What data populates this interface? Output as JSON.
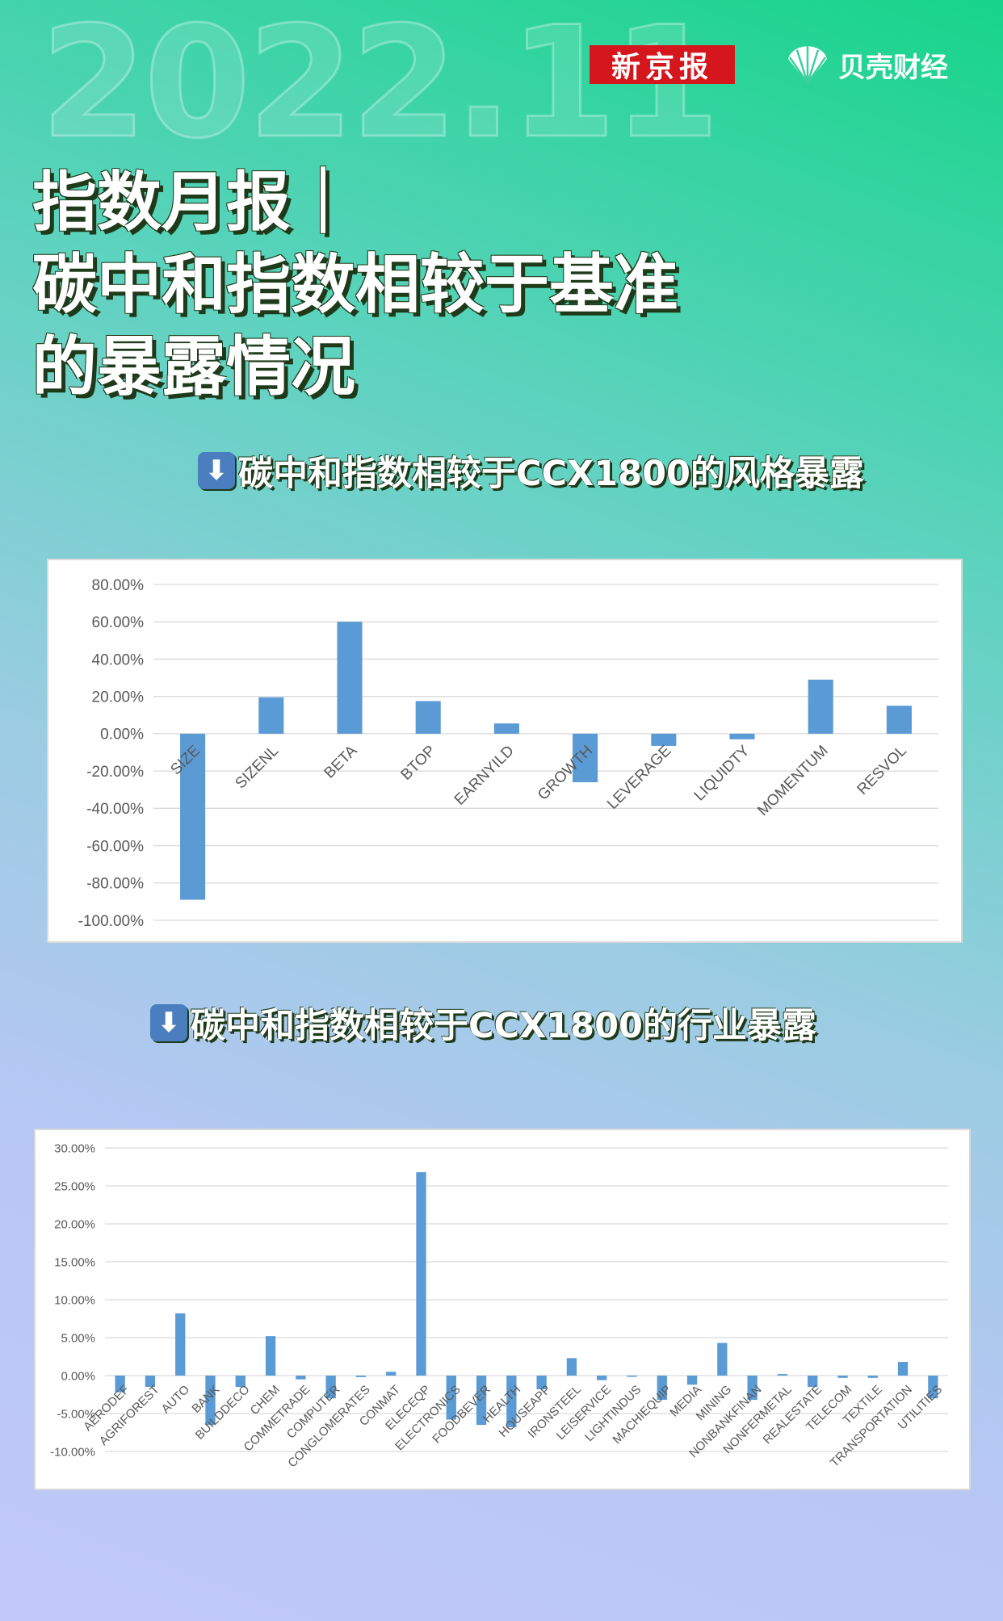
{
  "header": {
    "year_text": "2022.11",
    "logo_xjb": "新京报",
    "logo_bk": "贝壳财经",
    "logo_bk_icon": "shell-icon",
    "title_lines": [
      "指数月报｜",
      "碳中和指数相较于基准",
      "的暴露情况"
    ]
  },
  "sections": [
    {
      "icon": "arrow-down-icon",
      "title": "碳中和指数相较于CCX1800的风格暴露"
    },
    {
      "icon": "arrow-down-icon",
      "title": "碳中和指数相较于CCX1800的行业暴露"
    }
  ],
  "colors": {
    "bar": "#5b9bd5",
    "grid": "#d9d9d9",
    "axis_text": "#595959",
    "brand_red": "#d6161d"
  },
  "chart_data": [
    {
      "type": "bar",
      "categories": [
        "SIZE",
        "SIZENL",
        "BETA",
        "BTOP",
        "EARNYILD",
        "GROWTH",
        "LEVERAGE",
        "LIQUIDTY",
        "MOMENTUM",
        "RESVOL"
      ],
      "values": [
        -89,
        19.5,
        60,
        17.5,
        5.5,
        -26,
        -6.5,
        -3,
        29,
        15
      ],
      "ylim": [
        -100,
        80
      ],
      "yticks": [
        80,
        60,
        40,
        20,
        0,
        -20,
        -40,
        -60,
        -80,
        -100
      ],
      "ytick_labels": [
        "80.00%",
        "60.00%",
        "40.00%",
        "20.00%",
        "0.00%",
        "-20.00%",
        "-40.00%",
        "-60.00%",
        "-80.00%",
        "-100.00%"
      ],
      "grid": true
    },
    {
      "type": "bar",
      "categories": [
        "AERODEF",
        "AGRIFOREST",
        "AUTO",
        "BANK",
        "BUILDDECO",
        "CHEM",
        "COMMETRADE",
        "COMPUTER",
        "CONGLOMERATES",
        "CONMAT",
        "ELECEQP",
        "ELECTRONICS",
        "FOODBEVER",
        "HEALTH",
        "HOUSEAPP",
        "IRONSTEEL",
        "LEISERVICE",
        "LIGHTINDUS",
        "MACHIEQUIP",
        "MEDIA",
        "MINING",
        "NONBANKFINAN",
        "NONFERMETAL",
        "REALESTATE",
        "TELECOM",
        "TEXTILE",
        "TRANSPORTATION",
        "UTILITIES"
      ],
      "values": [
        -2.2,
        -1.5,
        8.2,
        -6.5,
        -1.5,
        5.2,
        -0.5,
        -3,
        -0.2,
        0.5,
        26.8,
        -5.8,
        -6.5,
        -6.8,
        -1.8,
        2.3,
        -0.6,
        -0.1,
        -3.2,
        -1.2,
        4.3,
        -3.2,
        0.2,
        -1.5,
        -0.3,
        -0.3,
        1.8,
        -3
      ],
      "ylim": [
        -10,
        30
      ],
      "yticks": [
        30,
        25,
        20,
        15,
        10,
        5,
        0,
        -5,
        -10
      ],
      "ytick_labels": [
        "30.00%",
        "25.00%",
        "20.00%",
        "15.00%",
        "10.00%",
        "5.00%",
        "0.00%",
        "-5.00%",
        "-10.00%"
      ],
      "grid": true
    }
  ]
}
